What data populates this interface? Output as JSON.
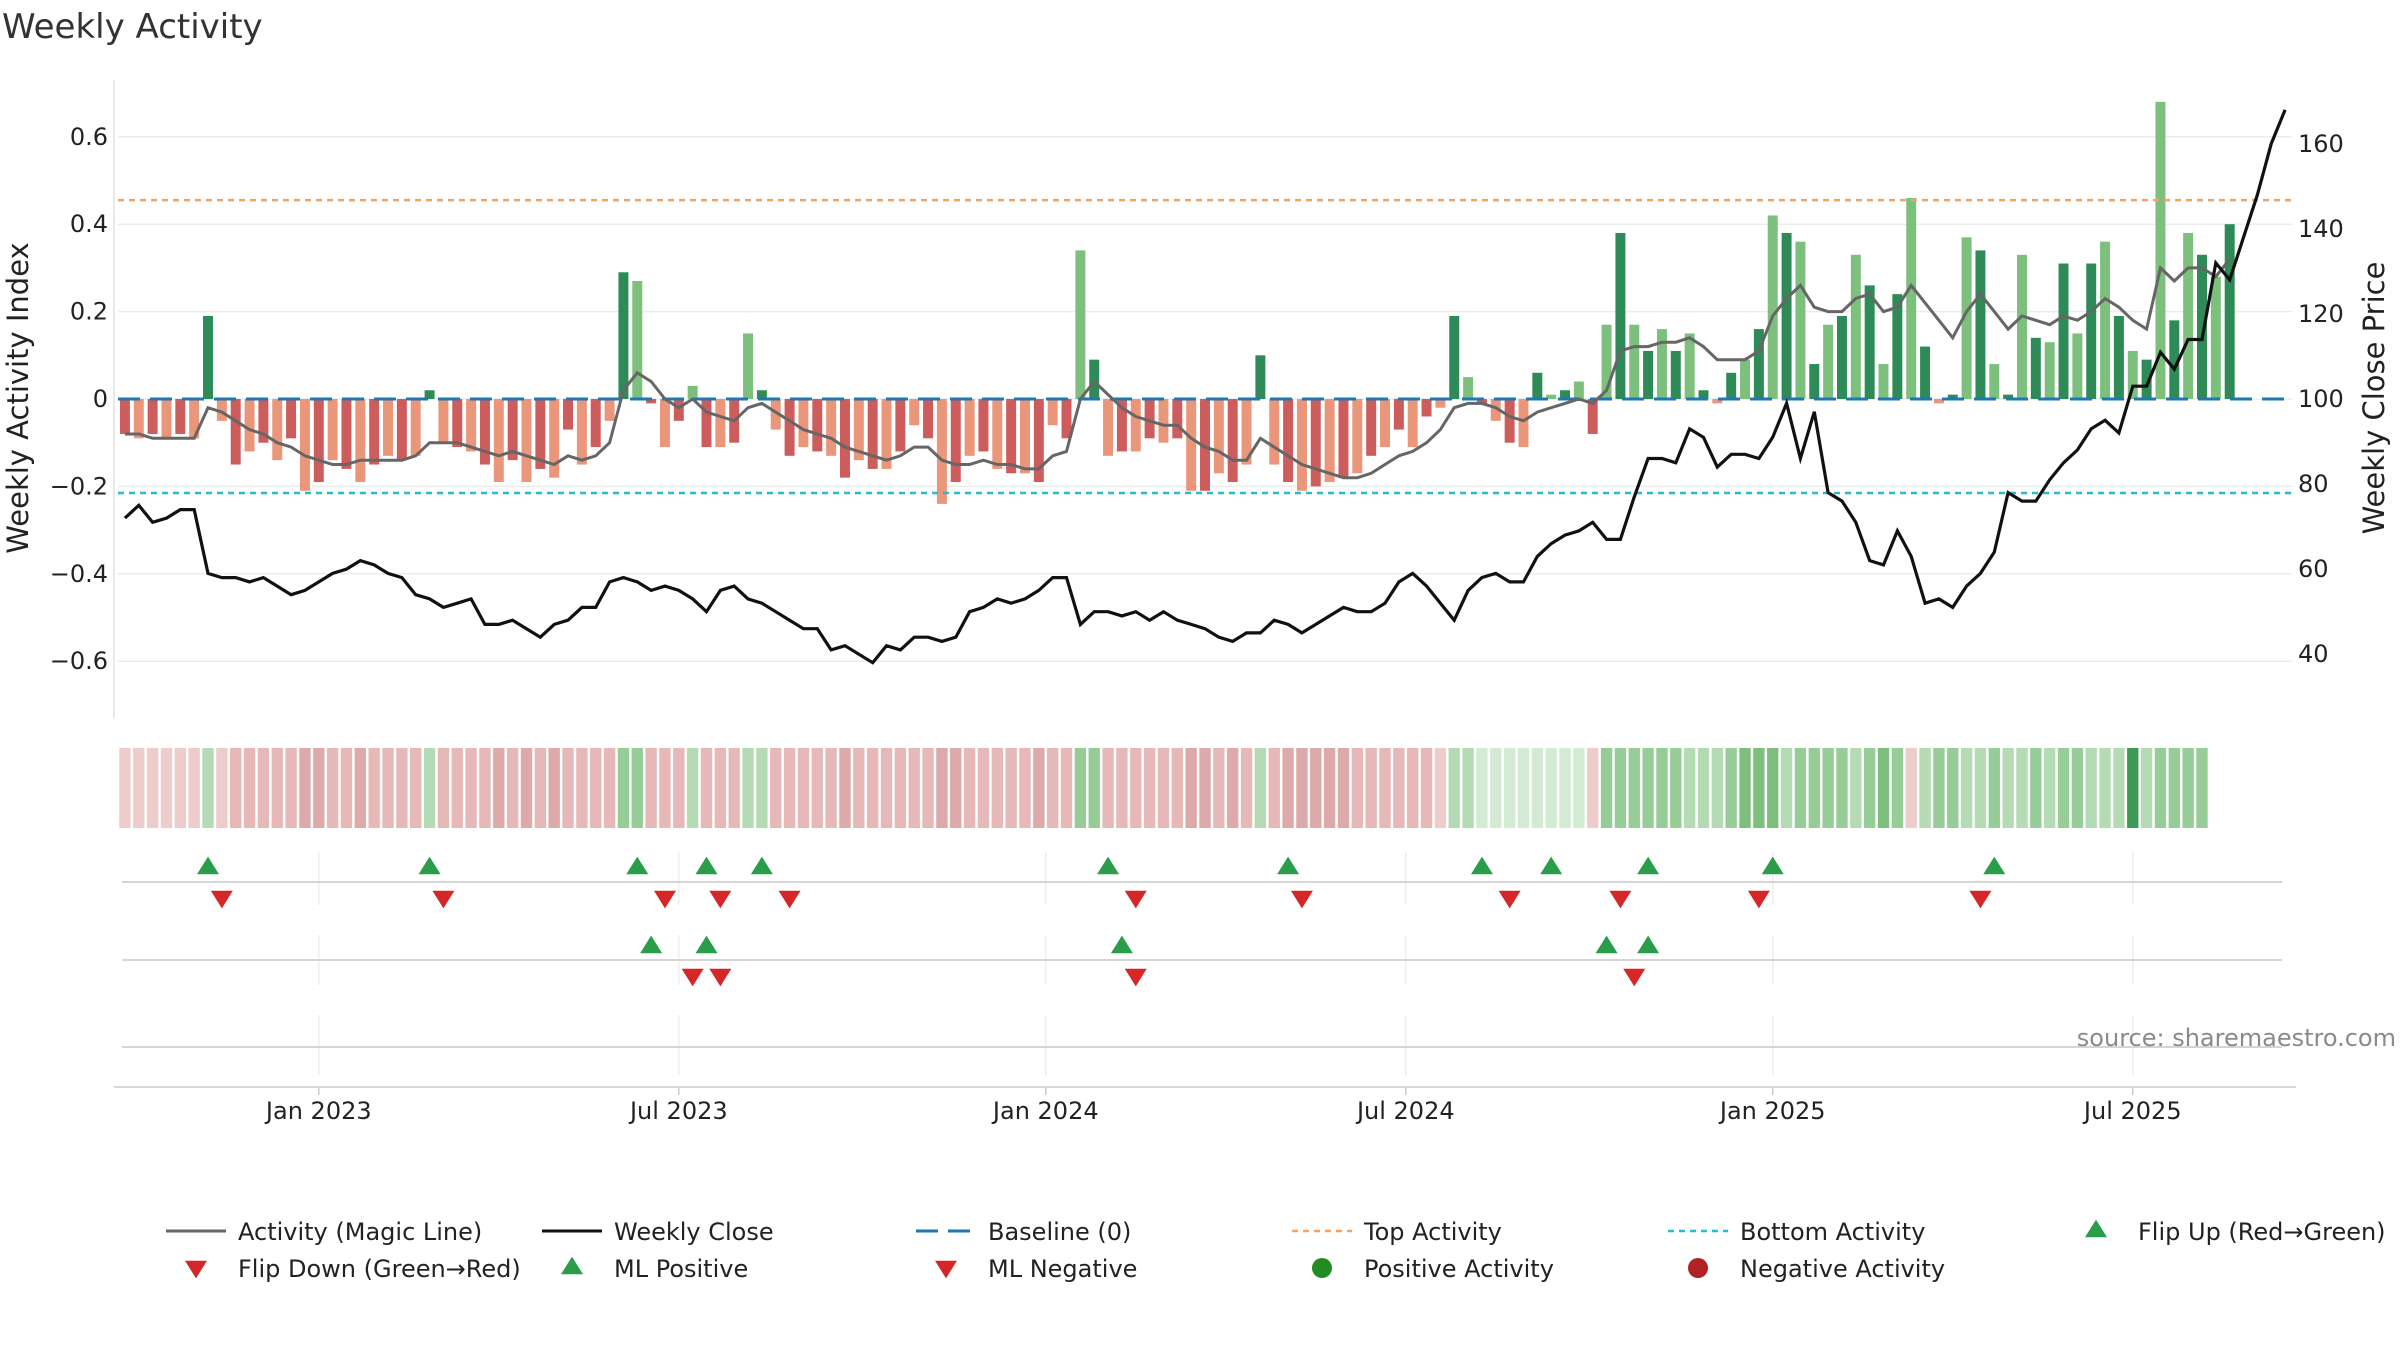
{
  "chart_data": {
    "type": "bar",
    "title": "Weekly Activity",
    "ylabel": "Weekly Activity Index",
    "y2label": "Weekly Close Price",
    "ylim": [
      -0.73,
      0.73
    ],
    "y2lim": [
      25,
      175
    ],
    "yticks": [
      -0.6,
      -0.4,
      -0.2,
      0,
      0.2,
      0.4,
      0.6
    ],
    "ytick_labels": [
      "−0.6",
      "−0.4",
      "−0.2",
      "0",
      "0.2",
      "0.4",
      "0.6"
    ],
    "y2ticks": [
      40,
      60,
      80,
      100,
      120,
      140,
      160
    ],
    "y2tick_labels": [
      "40",
      "60",
      "80",
      "100",
      "120",
      "140",
      "160"
    ],
    "xlim": [
      -0.5,
      156.5
    ],
    "xticks": [
      {
        "pos": 14,
        "label": "Jan 2023"
      },
      {
        "pos": 40,
        "label": "Jul 2023"
      },
      {
        "pos": 66.5,
        "label": "Jan 2024"
      },
      {
        "pos": 92.5,
        "label": "Jul 2024"
      },
      {
        "pos": 119,
        "label": "Jan 2025"
      },
      {
        "pos": 145,
        "label": "Jul 2025"
      }
    ],
    "top_activity": 0.455,
    "bottom_activity": -0.215,
    "activity": [
      -0.08,
      -0.09,
      -0.08,
      -0.09,
      -0.08,
      -0.09,
      0.19,
      -0.05,
      -0.15,
      -0.12,
      -0.1,
      -0.14,
      -0.09,
      -0.21,
      -0.19,
      -0.14,
      -0.16,
      -0.19,
      -0.15,
      -0.13,
      -0.14,
      -0.13,
      0.02,
      -0.1,
      -0.11,
      -0.12,
      -0.15,
      -0.19,
      -0.14,
      -0.19,
      -0.16,
      -0.18,
      -0.07,
      -0.15,
      -0.11,
      -0.05,
      0.29,
      0.27,
      -0.01,
      -0.11,
      -0.05,
      0.03,
      -0.11,
      -0.11,
      -0.1,
      0.15,
      0.02,
      -0.07,
      -0.13,
      -0.11,
      -0.12,
      -0.13,
      -0.18,
      -0.14,
      -0.16,
      -0.16,
      -0.12,
      -0.06,
      -0.09,
      -0.24,
      -0.19,
      -0.13,
      -0.12,
      -0.16,
      -0.17,
      -0.17,
      -0.19,
      -0.06,
      -0.09,
      0.34,
      0.09,
      -0.13,
      -0.12,
      -0.12,
      -0.09,
      -0.1,
      -0.09,
      -0.21,
      -0.21,
      -0.17,
      -0.19,
      -0.15,
      0.1,
      -0.15,
      -0.19,
      -0.21,
      -0.2,
      -0.19,
      -0.18,
      -0.17,
      -0.13,
      -0.11,
      -0.07,
      -0.11,
      -0.04,
      -0.02,
      0.19,
      0.05,
      -0.01,
      -0.05,
      -0.1,
      -0.11,
      0.06,
      0.01,
      0.02,
      0.04,
      -0.08,
      0.17,
      0.38,
      0.17,
      0.11,
      0.16,
      0.11,
      0.15,
      0.02,
      -0.01,
      0.06,
      0.09,
      0.16,
      0.42,
      0.38,
      0.36,
      0.08,
      0.17,
      0.19,
      0.33,
      0.26,
      0.08,
      0.24,
      0.46,
      0.12,
      -0.01,
      0.01,
      0.37,
      0.34,
      0.08,
      0.01,
      0.33,
      0.14,
      0.13,
      0.31,
      0.15,
      0.31,
      0.36,
      0.19,
      0.11,
      0.09,
      0.68,
      0.18,
      0.38,
      0.33,
      0.28,
      0.4
    ],
    "magic_line": [
      -0.08,
      -0.08,
      -0.09,
      -0.09,
      -0.09,
      -0.09,
      -0.02,
      -0.03,
      -0.05,
      -0.07,
      -0.08,
      -0.1,
      -0.11,
      -0.13,
      -0.14,
      -0.15,
      -0.15,
      -0.14,
      -0.14,
      -0.14,
      -0.14,
      -0.13,
      -0.1,
      -0.1,
      -0.1,
      -0.11,
      -0.12,
      -0.13,
      -0.12,
      -0.13,
      -0.14,
      -0.15,
      -0.13,
      -0.14,
      -0.13,
      -0.1,
      0.02,
      0.06,
      0.04,
      0.0,
      -0.02,
      0.0,
      -0.03,
      -0.04,
      -0.05,
      -0.02,
      -0.01,
      -0.03,
      -0.05,
      -0.07,
      -0.08,
      -0.09,
      -0.11,
      -0.12,
      -0.13,
      -0.14,
      -0.13,
      -0.11,
      -0.11,
      -0.14,
      -0.15,
      -0.15,
      -0.14,
      -0.15,
      -0.15,
      -0.16,
      -0.16,
      -0.13,
      -0.12,
      0.0,
      0.04,
      0.01,
      -0.02,
      -0.04,
      -0.05,
      -0.06,
      -0.06,
      -0.09,
      -0.11,
      -0.12,
      -0.14,
      -0.14,
      -0.09,
      -0.11,
      -0.13,
      -0.15,
      -0.16,
      -0.17,
      -0.18,
      -0.18,
      -0.17,
      -0.15,
      -0.13,
      -0.12,
      -0.1,
      -0.07,
      -0.02,
      -0.01,
      -0.01,
      -0.02,
      -0.04,
      -0.05,
      -0.03,
      -0.02,
      -0.01,
      0.0,
      -0.01,
      0.02,
      0.11,
      0.12,
      0.12,
      0.13,
      0.13,
      0.14,
      0.12,
      0.09,
      0.09,
      0.09,
      0.11,
      0.19,
      0.23,
      0.26,
      0.21,
      0.2,
      0.2,
      0.23,
      0.24,
      0.2,
      0.21,
      0.26,
      0.22,
      0.18,
      0.14,
      0.2,
      0.24,
      0.2,
      0.16,
      0.19,
      0.18,
      0.17,
      0.19,
      0.18,
      0.2,
      0.23,
      0.21,
      0.18,
      0.16,
      0.3,
      0.27,
      0.3,
      0.3,
      0.28,
      0.32
    ],
    "weekly_close": [
      72,
      75,
      71,
      72,
      74,
      74,
      59,
      58,
      58,
      57,
      58,
      56,
      54,
      55,
      57,
      59,
      60,
      62,
      61,
      59,
      58,
      54,
      53,
      51,
      52,
      53,
      47,
      47,
      48,
      46,
      44,
      47,
      48,
      51,
      51,
      57,
      58,
      57,
      55,
      56,
      55,
      53,
      50,
      55,
      56,
      53,
      52,
      50,
      48,
      46,
      46,
      41,
      42,
      40,
      38,
      42,
      41,
      44,
      44,
      43,
      44,
      50,
      51,
      53,
      52,
      53,
      55,
      58,
      58,
      47,
      50,
      50,
      49,
      50,
      48,
      50,
      48,
      47,
      46,
      44,
      43,
      45,
      45,
      48,
      47,
      45,
      47,
      49,
      51,
      50,
      50,
      52,
      57,
      59,
      56,
      52,
      48,
      55,
      58,
      59,
      57,
      57,
      63,
      66,
      68,
      69,
      71,
      67,
      67,
      77,
      86,
      86,
      85,
      93,
      91,
      84,
      87,
      87,
      86,
      91,
      99,
      86,
      97,
      78,
      76,
      71,
      62,
      61,
      69,
      63,
      52,
      53,
      51,
      56,
      59,
      64,
      78,
      76,
      76,
      81,
      85,
      88,
      93,
      95,
      92,
      103,
      103,
      111,
      107,
      114,
      114,
      132,
      128,
      138,
      148,
      160,
      168
    ],
    "heatmap_levels": [
      2,
      2,
      2,
      2,
      2,
      2,
      5,
      2,
      1,
      1,
      1,
      1,
      1,
      0,
      0,
      1,
      1,
      0,
      1,
      1,
      1,
      1,
      5,
      1,
      1,
      1,
      1,
      0,
      1,
      0,
      1,
      0,
      1,
      1,
      1,
      1,
      6,
      6,
      1,
      1,
      1,
      5,
      1,
      1,
      1,
      5,
      5,
      1,
      1,
      1,
      1,
      1,
      0,
      1,
      1,
      1,
      1,
      1,
      1,
      0,
      0,
      1,
      1,
      1,
      1,
      1,
      0,
      1,
      1,
      6,
      6,
      1,
      1,
      1,
      1,
      1,
      1,
      0,
      0,
      1,
      0,
      1,
      5,
      1,
      0,
      0,
      0,
      0,
      0,
      1,
      1,
      1,
      1,
      1,
      1,
      2,
      5,
      5,
      4,
      4,
      4,
      4,
      4,
      4,
      4,
      4,
      2,
      6,
      6,
      6,
      6,
      6,
      6,
      5,
      5,
      5,
      6,
      7,
      7,
      7,
      5,
      6,
      6,
      6,
      6,
      5,
      6,
      7,
      6,
      2,
      5,
      6,
      6,
      5,
      5,
      6,
      5,
      5,
      6,
      5,
      6,
      6,
      5,
      5,
      5,
      8,
      5,
      6,
      6,
      6,
      6
    ],
    "flip_up": [
      6,
      22,
      37,
      42,
      46,
      71,
      84,
      98,
      103,
      110,
      119,
      135
    ],
    "flip_down": [
      7,
      23,
      39,
      43,
      48,
      73,
      85,
      100,
      108,
      118,
      134
    ],
    "ml_positive": [
      38,
      42,
      72,
      107,
      110
    ],
    "ml_negative": [
      41,
      43,
      73,
      109
    ],
    "legend": [
      "Activity (Magic Line)",
      "Weekly Close",
      "Baseline (0)",
      "Top Activity",
      "Bottom Activity",
      "Flip Up (Red→Green)",
      "Flip Down (Green→Red)",
      "ML Positive",
      "ML Negative",
      "Positive Activity",
      "Negative Activity"
    ],
    "source": "source: sharemaestro.com",
    "colors": {
      "pos_strong": "#2e8b57",
      "pos_light": "#7dbf7d",
      "neg_strong": "#cd5c5c",
      "neg_light": "#e9967a",
      "magic_line": "#666666",
      "close": "#111111",
      "baseline": "#1f77b4",
      "top": "#f4a460",
      "bottom": "#20c0d0",
      "up_marker": "#2a9d4a",
      "down_marker": "#d62728",
      "pos_dot": "#228b22",
      "neg_dot": "#b22222"
    }
  }
}
